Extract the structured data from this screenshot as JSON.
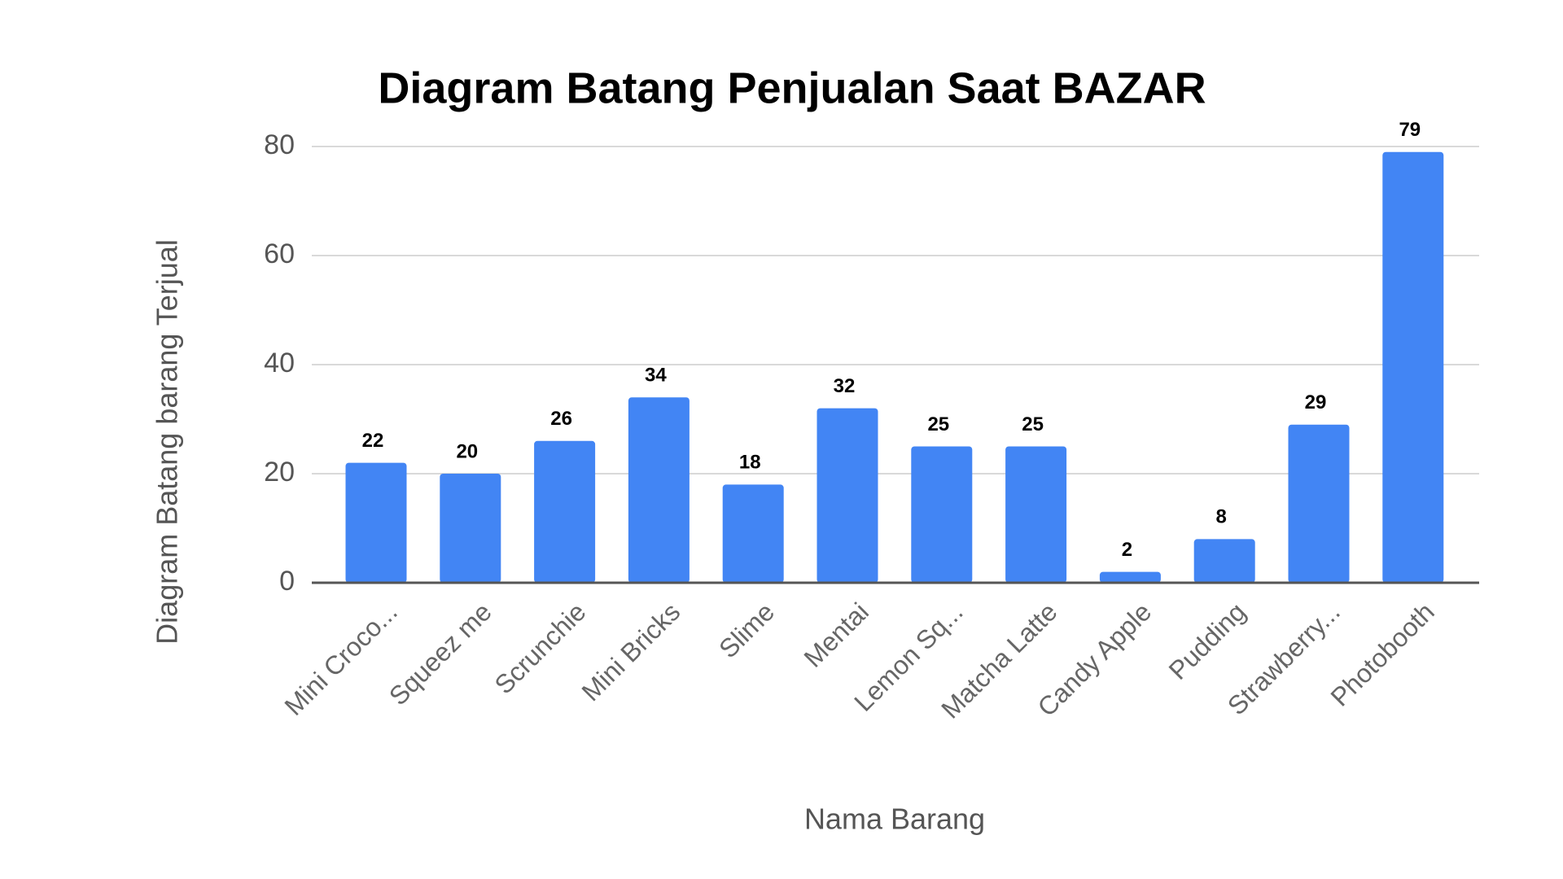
{
  "chart_data": {
    "type": "bar",
    "title": "Diagram Batang Penjualan Saat BAZAR",
    "x_label": "Nama Barang",
    "y_label": "Diagram Batang barang Terjual",
    "categories": [
      "Mini Croco...",
      "Squeez me",
      "Scrunchie",
      "Mini Bricks",
      "Slime",
      "Mentai",
      "Lemon Sq...",
      "Matcha Latte",
      "Candy Apple",
      "Pudding",
      "Strawberry...",
      "Photobooth"
    ],
    "values": [
      22,
      20,
      26,
      34,
      18,
      32,
      25,
      25,
      2,
      8,
      29,
      79
    ],
    "color": "#4285f4",
    "ylim": [
      0,
      80
    ],
    "yticks": [
      0,
      20,
      40,
      60,
      80
    ],
    "grid": true
  }
}
